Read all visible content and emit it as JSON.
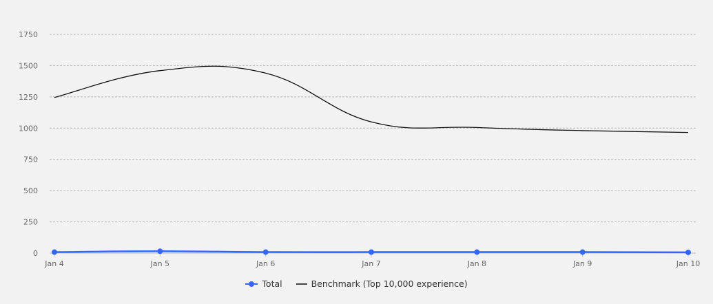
{
  "chart_data": {
    "type": "line",
    "title": "",
    "xlabel": "",
    "ylabel": "",
    "ylim": [
      0,
      1750
    ],
    "yticks": [
      0,
      250,
      500,
      750,
      1000,
      1250,
      1500,
      1750
    ],
    "categories": [
      "Jan 4",
      "Jan 5",
      "Jan 6",
      "Jan 7",
      "Jan 8",
      "Jan 9",
      "Jan 10"
    ],
    "grid": true,
    "legend_position": "bottom",
    "series": [
      {
        "name": "Total",
        "color": "#3366ff",
        "markers": true,
        "values": [
          8,
          15,
          8,
          8,
          8,
          8,
          6
        ]
      },
      {
        "name": "Benchmark (Top 10,000 experience)",
        "color": "#111111",
        "markers": false,
        "values": [
          1245,
          1460,
          1440,
          1050,
          1005,
          980,
          965
        ]
      }
    ]
  },
  "legend": {
    "total_label": "Total",
    "benchmark_label": "Benchmark (Top 10,000 experience)"
  }
}
